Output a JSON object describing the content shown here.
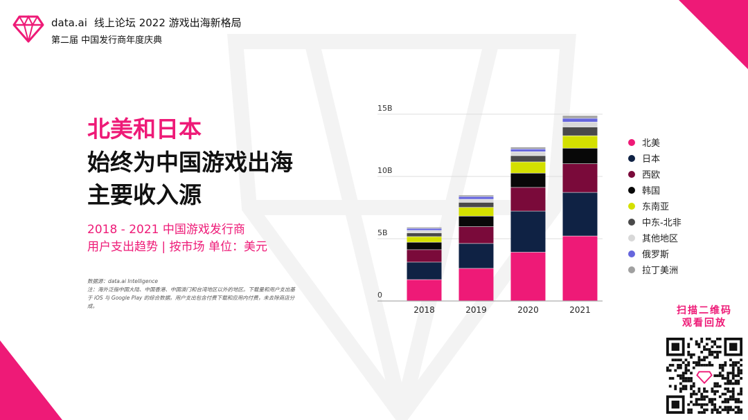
{
  "header": {
    "brand": "data.ai",
    "line1": "线上论坛  2022 游戏出海新格局",
    "line2": "第二届 中国发行商年度庆典"
  },
  "title": {
    "pink": "北美和日本",
    "line2": "始终为中国游戏出海",
    "line3": "主要收入源"
  },
  "subtitle": {
    "line1": "2018 - 2021 中国游戏发行商",
    "line2": "用户支出趋势 | 按市场 单位：美元"
  },
  "notes": {
    "source": "数据源：data.ai Intelligence",
    "note": "注：海外泛指中国大陆、中国香港、中国澳门和台湾地区以外的地区。下载量和用户支出基于 iOS 与 Google Play 的综合数据。用户支出包含付费下载和应用内付费，未去除商店分成。"
  },
  "qr": {
    "line1": "扫描二维码",
    "line2": "观看回放"
  },
  "colors": {
    "accent": "#ee1a77"
  },
  "chart_data": {
    "type": "bar",
    "stacked": true,
    "categories": [
      "2018",
      "2019",
      "2020",
      "2021"
    ],
    "ylim": [
      0,
      15
    ],
    "yticks": [
      {
        "value": 0,
        "label": "0"
      },
      {
        "value": 5,
        "label": "5B"
      },
      {
        "value": 10,
        "label": "10B"
      },
      {
        "value": 15,
        "label": "15B"
      }
    ],
    "unit": "B USD",
    "series": [
      {
        "name": "北美",
        "color": "#ee1a77",
        "values": [
          1.7,
          2.6,
          3.9,
          5.2
        ]
      },
      {
        "name": "日本",
        "color": "#0f2244",
        "values": [
          1.4,
          2.0,
          3.3,
          3.5
        ]
      },
      {
        "name": "西欧",
        "color": "#7a0a3a",
        "values": [
          1.0,
          1.35,
          1.9,
          2.3
        ]
      },
      {
        "name": "韩国",
        "color": "#080808",
        "values": [
          0.6,
          0.85,
          1.15,
          1.25
        ]
      },
      {
        "name": "东南亚",
        "color": "#d4e000",
        "values": [
          0.45,
          0.7,
          0.9,
          1.0
        ]
      },
      {
        "name": "中东-北非",
        "color": "#4a4a4a",
        "values": [
          0.3,
          0.4,
          0.5,
          0.7
        ]
      },
      {
        "name": "其他地区",
        "color": "#d8d8d8",
        "values": [
          0.2,
          0.25,
          0.32,
          0.4
        ]
      },
      {
        "name": "俄罗斯",
        "color": "#6666dd",
        "values": [
          0.16,
          0.22,
          0.22,
          0.3
        ]
      },
      {
        "name": "拉丁美洲",
        "color": "#a0a0a0",
        "values": [
          0.1,
          0.12,
          0.15,
          0.22
        ]
      }
    ]
  }
}
